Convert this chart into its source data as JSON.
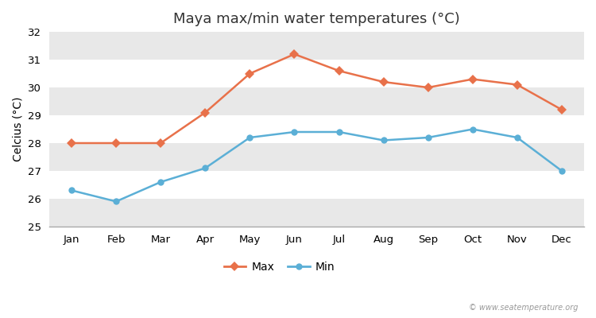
{
  "title": "Maya max/min water temperatures (°C)",
  "ylabel": "Celcius (°C)",
  "months": [
    "Jan",
    "Feb",
    "Mar",
    "Apr",
    "May",
    "Jun",
    "Jul",
    "Aug",
    "Sep",
    "Oct",
    "Nov",
    "Dec"
  ],
  "max_temps": [
    28.0,
    28.0,
    28.0,
    29.1,
    30.5,
    31.2,
    30.6,
    30.2,
    30.0,
    30.3,
    30.1,
    29.2
  ],
  "min_temps": [
    26.3,
    25.9,
    26.6,
    27.1,
    28.2,
    28.4,
    28.4,
    28.1,
    28.2,
    28.5,
    28.2,
    27.0
  ],
  "max_color": "#E8714A",
  "min_color": "#5BAFD6",
  "fig_bg_color": "#ffffff",
  "plot_bg_color": "#ffffff",
  "band_color": "#e8e8e8",
  "ylim": [
    25,
    32
  ],
  "yticks": [
    25,
    26,
    27,
    28,
    29,
    30,
    31,
    32
  ],
  "legend_labels": [
    "Max",
    "Min"
  ],
  "watermark": "© www.seatemperature.org",
  "title_fontsize": 13,
  "axis_label_fontsize": 10,
  "tick_fontsize": 9.5,
  "legend_fontsize": 10
}
